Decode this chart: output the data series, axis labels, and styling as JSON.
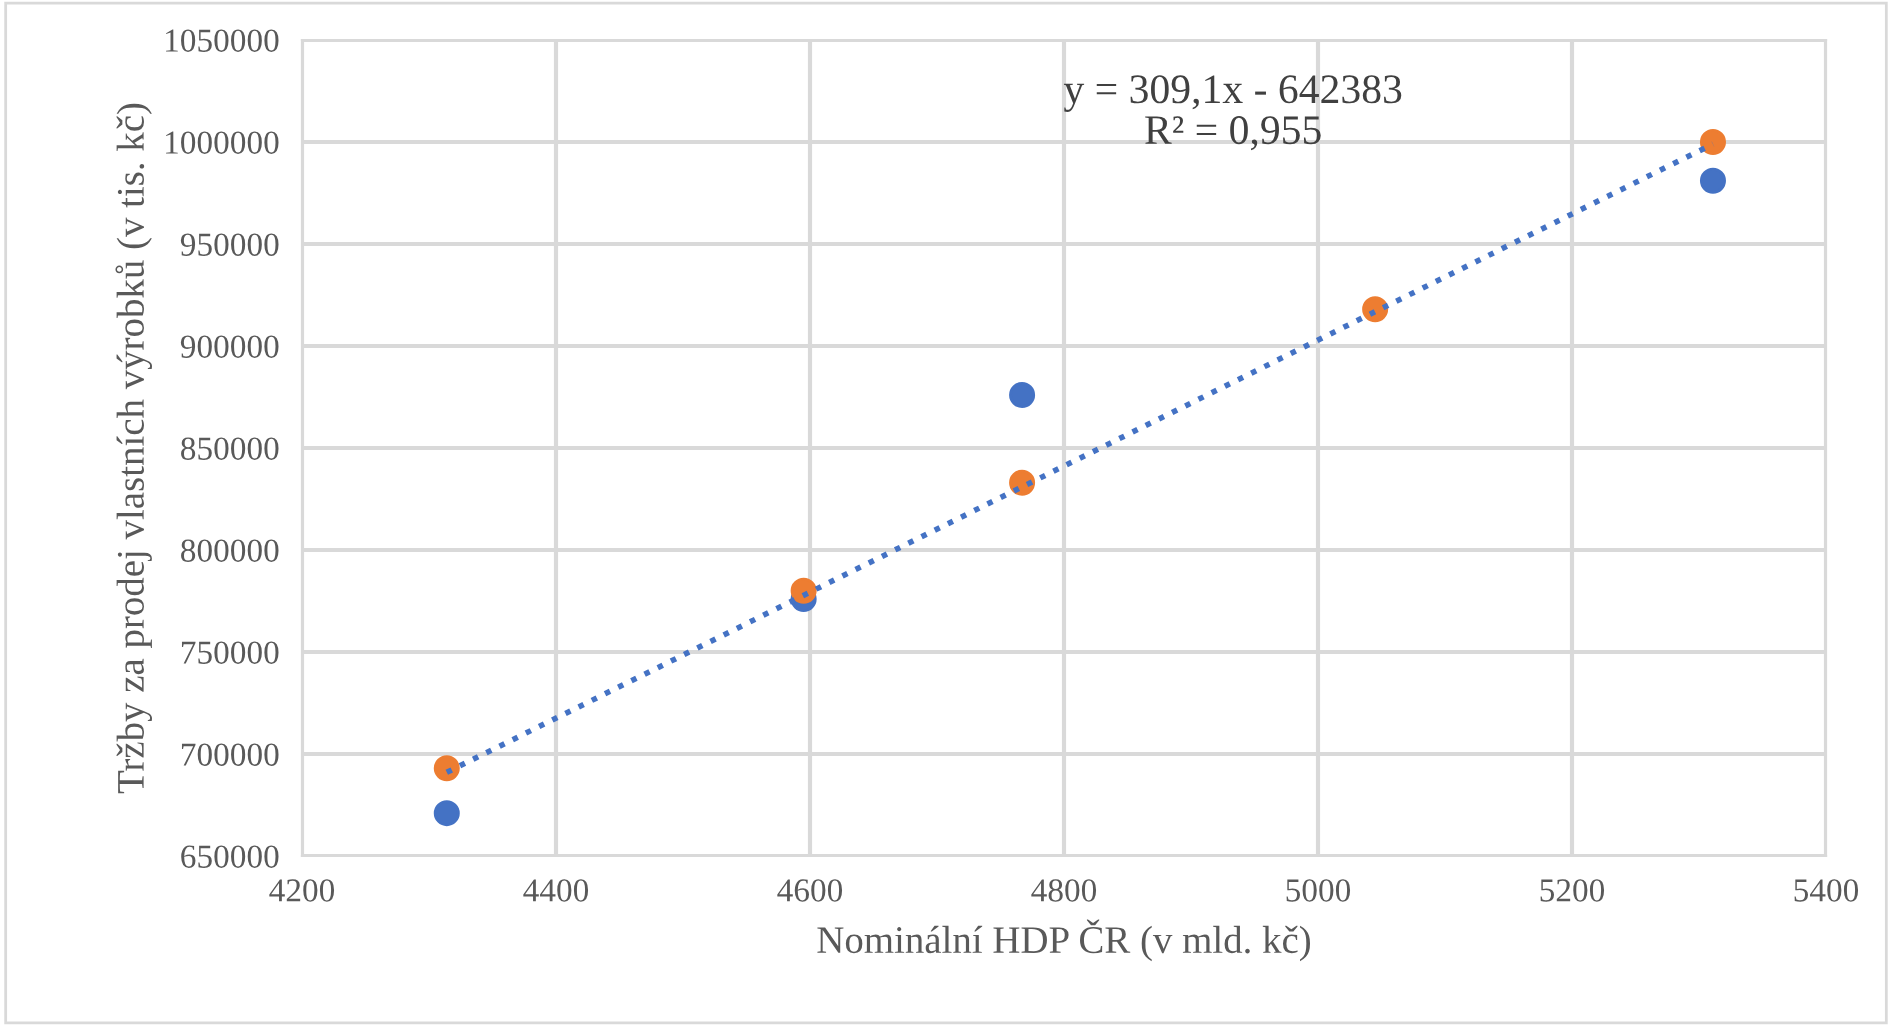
{
  "chart_data": {
    "type": "scatter",
    "xlabel": "Nominální HDP ČR (v mld. kč)",
    "ylabel": "Tržby za prodej vlastních výrobků (v tis. kč)",
    "x": [
      4314,
      4595,
      4767,
      5045,
      5311
    ],
    "series": [
      {
        "color": "#4472c4",
        "values": [
          671000,
          776000,
          876000,
          null,
          981000
        ]
      },
      {
        "color": "#ed7d31",
        "values": [
          693000,
          780000,
          833000,
          918000,
          1000000
        ]
      },
      {
        "type": "line",
        "color": "#4472c4",
        "line_style": "dotted",
        "marker": "none",
        "x": [
          4314,
          5311
        ],
        "values": [
          691000,
          999000
        ]
      }
    ],
    "xlim": [
      4200,
      5400
    ],
    "xticks": [
      4200,
      4400,
      4600,
      4800,
      5000,
      5200,
      5400
    ],
    "ylim": [
      650000,
      1050000
    ],
    "yticks": [
      650000,
      700000,
      750000,
      800000,
      850000,
      900000,
      950000,
      1000000,
      1050000
    ],
    "grid": true,
    "marker": "circle",
    "legend": false,
    "annotations": [
      "y = 309,1x - 642383\nR² = 0,955"
    ]
  }
}
